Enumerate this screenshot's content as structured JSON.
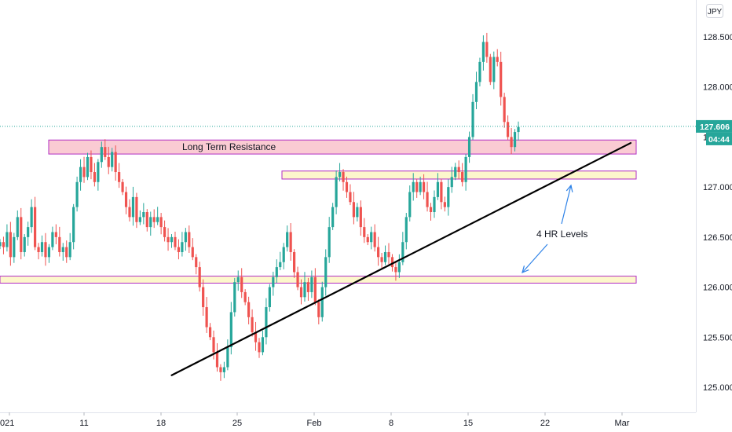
{
  "currency_label": "JPY",
  "colors": {
    "up": "#26a69a",
    "down": "#ef5350",
    "price_line": "#26a69a",
    "resistance_fill": "#f9c2cb",
    "resistance_border": "#b12dc3",
    "level_fill": "#fdf6c3",
    "level_border": "#b12dc3",
    "trendline": "#000000",
    "arrow": "#2f83e8"
  },
  "chart_data": {
    "type": "candlestick",
    "title": "",
    "x_ticks": [
      "021",
      "11",
      "18",
      "25",
      "Feb",
      "8",
      "15",
      "22",
      "Mar"
    ],
    "y_ticks": [
      "125.000",
      "125.500",
      "126.000",
      "126.500",
      "127.000",
      "127.500",
      "128.000",
      "128.500"
    ],
    "ylim": [
      124.85,
      128.85
    ],
    "last_price": "127.606",
    "countdown": "04:44",
    "annotations": {
      "resistance_label": "Long Term Resistance",
      "levels_label": "4 HR Levels"
    },
    "zones": [
      {
        "name": "Long Term Resistance",
        "y_low": 127.33,
        "y_high": 127.47
      },
      {
        "name": "4 HR level upper",
        "y_low": 127.08,
        "y_high": 127.16
      },
      {
        "name": "4 HR level lower",
        "y_low": 126.04,
        "y_high": 126.11
      }
    ],
    "trendline": {
      "from": {
        "x": "Jan 19",
        "y": 125.12
      },
      "to": {
        "x": "Mar 1",
        "y": 127.44
      }
    },
    "price_path": [
      126.45,
      126.4,
      126.55,
      126.3,
      126.5,
      126.7,
      126.35,
      126.5,
      126.6,
      126.8,
      126.4,
      126.35,
      126.45,
      126.3,
      126.4,
      126.55,
      126.5,
      126.35,
      126.4,
      126.3,
      126.45,
      126.8,
      127.05,
      127.2,
      127.1,
      127.3,
      127.15,
      127.05,
      127.25,
      127.4,
      127.3,
      127.2,
      127.35,
      127.15,
      127.05,
      126.95,
      126.8,
      126.7,
      126.9,
      126.65,
      126.7,
      126.75,
      126.6,
      126.7,
      126.65,
      126.7,
      126.6,
      126.5,
      126.45,
      126.5,
      126.4,
      126.35,
      126.45,
      126.55,
      126.4,
      126.3,
      126.2,
      126.0,
      125.8,
      125.6,
      125.5,
      125.35,
      125.2,
      125.15,
      125.2,
      125.4,
      125.75,
      126.05,
      126.1,
      125.95,
      125.85,
      125.7,
      125.55,
      125.45,
      125.35,
      125.5,
      125.8,
      126.0,
      126.1,
      126.2,
      126.25,
      126.4,
      126.55,
      126.35,
      126.15,
      126.0,
      125.9,
      126.05,
      125.95,
      126.1,
      125.85,
      125.7,
      126.0,
      126.3,
      126.6,
      126.8,
      127.1,
      127.15,
      127.05,
      126.95,
      126.85,
      126.7,
      126.8,
      126.6,
      126.5,
      126.45,
      126.55,
      126.4,
      126.3,
      126.25,
      126.35,
      126.3,
      126.2,
      126.15,
      126.25,
      126.45,
      126.7,
      126.95,
      127.05,
      126.95,
      127.05,
      126.95,
      126.8,
      126.75,
      126.9,
      127.05,
      126.85,
      126.8,
      127.0,
      127.1,
      127.2,
      127.15,
      127.05,
      127.3,
      127.5,
      127.85,
      128.05,
      128.25,
      128.45,
      128.3,
      128.05,
      128.3,
      128.25,
      127.9,
      127.65,
      127.5,
      127.4,
      127.55,
      127.6
    ]
  }
}
